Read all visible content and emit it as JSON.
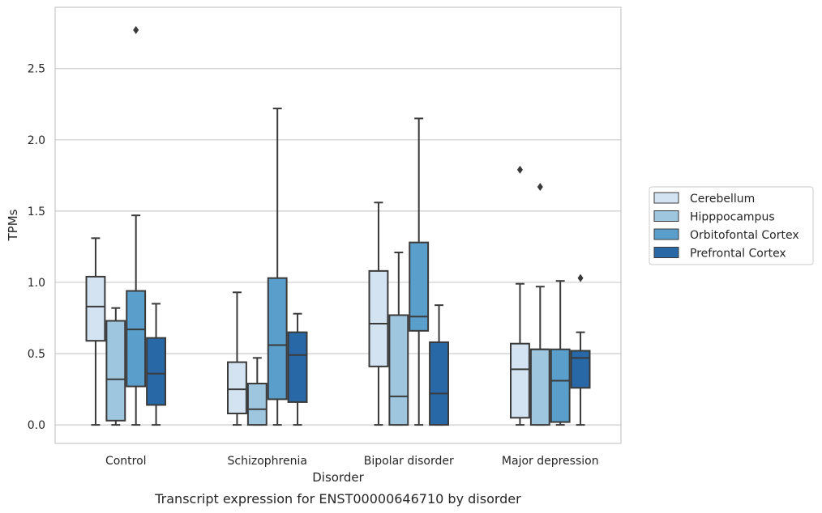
{
  "chart_data": {
    "type": "box",
    "caption": "Transcript expression for ENST00000646710 by disorder",
    "xlabel": "Disorder",
    "ylabel": "TPMs",
    "ylim": [
      -0.13,
      2.93
    ],
    "yticks": [
      0.0,
      0.5,
      1.0,
      1.5,
      2.0,
      2.5
    ],
    "ytick_labels": [
      "0.0",
      "0.5",
      "1.0",
      "1.5",
      "2.0",
      "2.5"
    ],
    "grid": true,
    "legend_position": "right",
    "categories": [
      "Control",
      "Schizophrenia",
      "Bipolar disorder",
      "Major depression"
    ],
    "series": [
      {
        "name": "Cerebellum",
        "color": "#d4e3f2",
        "boxes": [
          {
            "whislo": 0.0,
            "q1": 0.59,
            "med": 0.83,
            "q3": 1.04,
            "whishi": 1.31,
            "fliers": []
          },
          {
            "whislo": 0.0,
            "q1": 0.08,
            "med": 0.25,
            "q3": 0.44,
            "whishi": 0.93,
            "fliers": []
          },
          {
            "whislo": 0.0,
            "q1": 0.41,
            "med": 0.71,
            "q3": 1.08,
            "whishi": 1.56,
            "fliers": []
          },
          {
            "whislo": 0.0,
            "q1": 0.05,
            "med": 0.39,
            "q3": 0.57,
            "whishi": 0.99,
            "fliers": [
              1.79
            ]
          }
        ]
      },
      {
        "name": "Hipppocampus",
        "color": "#9ec6de",
        "boxes": [
          {
            "whislo": 0.0,
            "q1": 0.03,
            "med": 0.32,
            "q3": 0.73,
            "whishi": 0.82,
            "fliers": []
          },
          {
            "whislo": 0.0,
            "q1": 0.0,
            "med": 0.11,
            "q3": 0.29,
            "whishi": 0.47,
            "fliers": []
          },
          {
            "whislo": 0.0,
            "q1": 0.0,
            "med": 0.2,
            "q3": 0.77,
            "whishi": 1.21,
            "fliers": []
          },
          {
            "whislo": 0.0,
            "q1": 0.0,
            "med": 0.53,
            "q3": 0.53,
            "whishi": 0.97,
            "fliers": [
              1.67
            ]
          }
        ]
      },
      {
        "name": "Orbitofontal Cortex",
        "color": "#5a9ecb",
        "boxes": [
          {
            "whislo": 0.0,
            "q1": 0.27,
            "med": 0.67,
            "q3": 0.94,
            "whishi": 1.47,
            "fliers": [
              2.77
            ]
          },
          {
            "whislo": 0.0,
            "q1": 0.18,
            "med": 0.56,
            "q3": 1.03,
            "whishi": 2.22,
            "fliers": []
          },
          {
            "whislo": 0.0,
            "q1": 0.66,
            "med": 0.76,
            "q3": 1.28,
            "whishi": 2.15,
            "fliers": []
          },
          {
            "whislo": 0.0,
            "q1": 0.02,
            "med": 0.31,
            "q3": 0.53,
            "whishi": 1.01,
            "fliers": []
          }
        ]
      },
      {
        "name": "Prefrontal Cortex",
        "color": "#2868a6",
        "boxes": [
          {
            "whislo": 0.0,
            "q1": 0.14,
            "med": 0.36,
            "q3": 0.61,
            "whishi": 0.85,
            "fliers": []
          },
          {
            "whislo": 0.0,
            "q1": 0.16,
            "med": 0.49,
            "q3": 0.65,
            "whishi": 0.78,
            "fliers": []
          },
          {
            "whislo": 0.0,
            "q1": 0.0,
            "med": 0.22,
            "q3": 0.58,
            "whishi": 0.84,
            "fliers": []
          },
          {
            "whislo": 0.0,
            "q1": 0.26,
            "med": 0.47,
            "q3": 0.52,
            "whishi": 0.65,
            "fliers": [
              1.03
            ]
          }
        ]
      }
    ]
  }
}
